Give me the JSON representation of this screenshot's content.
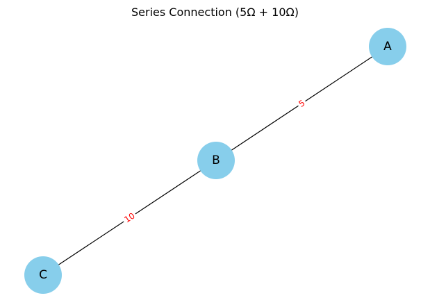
{
  "title": "Series Connection (5Ω + 10Ω)",
  "colors": {
    "node_fill": "#87CEEB",
    "edge_stroke": "#000000",
    "edge_label": "#FF0000",
    "label_bg": "#FFFFFF"
  },
  "nodes": [
    {
      "id": "A",
      "label": "A"
    },
    {
      "id": "B",
      "label": "B"
    },
    {
      "id": "C",
      "label": "C"
    }
  ],
  "edges": [
    {
      "from": "A",
      "to": "B",
      "label": "5"
    },
    {
      "from": "B",
      "to": "C",
      "label": "10"
    }
  ]
}
